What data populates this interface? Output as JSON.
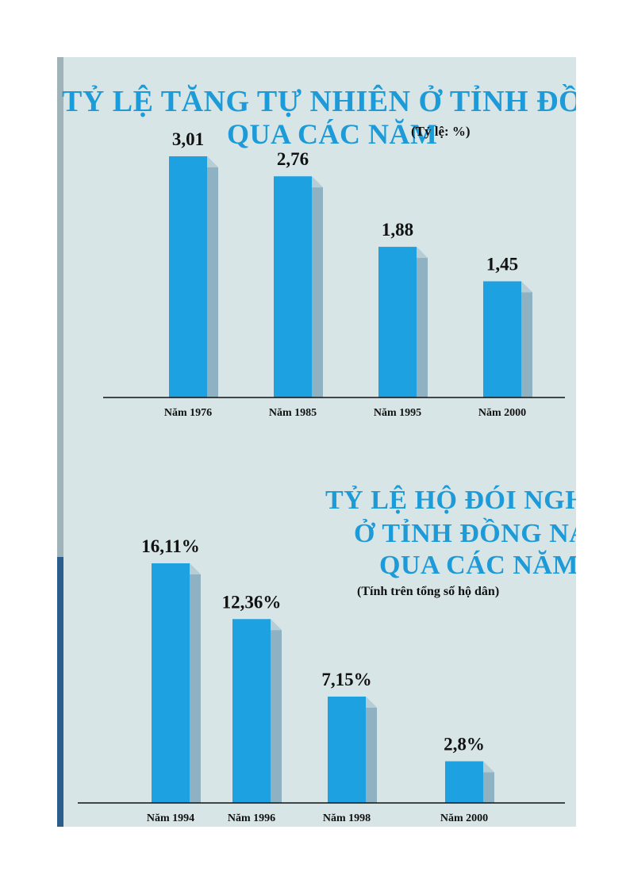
{
  "chart_data": [
    {
      "type": "bar",
      "title_lines": [
        "TỶ LỆ TĂNG TỰ NHIÊN  Ở TỈNH ĐỒNG NAI",
        "QUA CÁC NĂM"
      ],
      "unit_note": "(Tỷ lệ: %)",
      "categories": [
        "Năm 1976",
        "Năm 1985",
        "Năm 1995",
        "Năm 2000"
      ],
      "values": [
        3.01,
        2.76,
        1.88,
        1.45
      ],
      "value_labels": [
        "3,01",
        "2,76",
        "1,88",
        "1,45"
      ],
      "grid": false,
      "bar_color": "#1da1e0",
      "bar_side_color": "#8fb2c2"
    },
    {
      "type": "bar",
      "title_lines": [
        "TỶ LỆ HỘ ĐÓI NGHÈO",
        "Ở TỈNH ĐỒNG NAI",
        "QUA CÁC NĂM"
      ],
      "unit_note": "(Tính trên tổng số hộ dân)",
      "categories": [
        "Năm 1994",
        "Năm 1996",
        "Năm 1998",
        "Năm 2000"
      ],
      "values": [
        16.11,
        12.36,
        7.15,
        2.8
      ],
      "value_labels": [
        "16,11%",
        "12,36%",
        "7,15%",
        "2,8%"
      ],
      "grid": false,
      "bar_color": "#1da1e0",
      "bar_side_color": "#8fb2c2"
    }
  ]
}
